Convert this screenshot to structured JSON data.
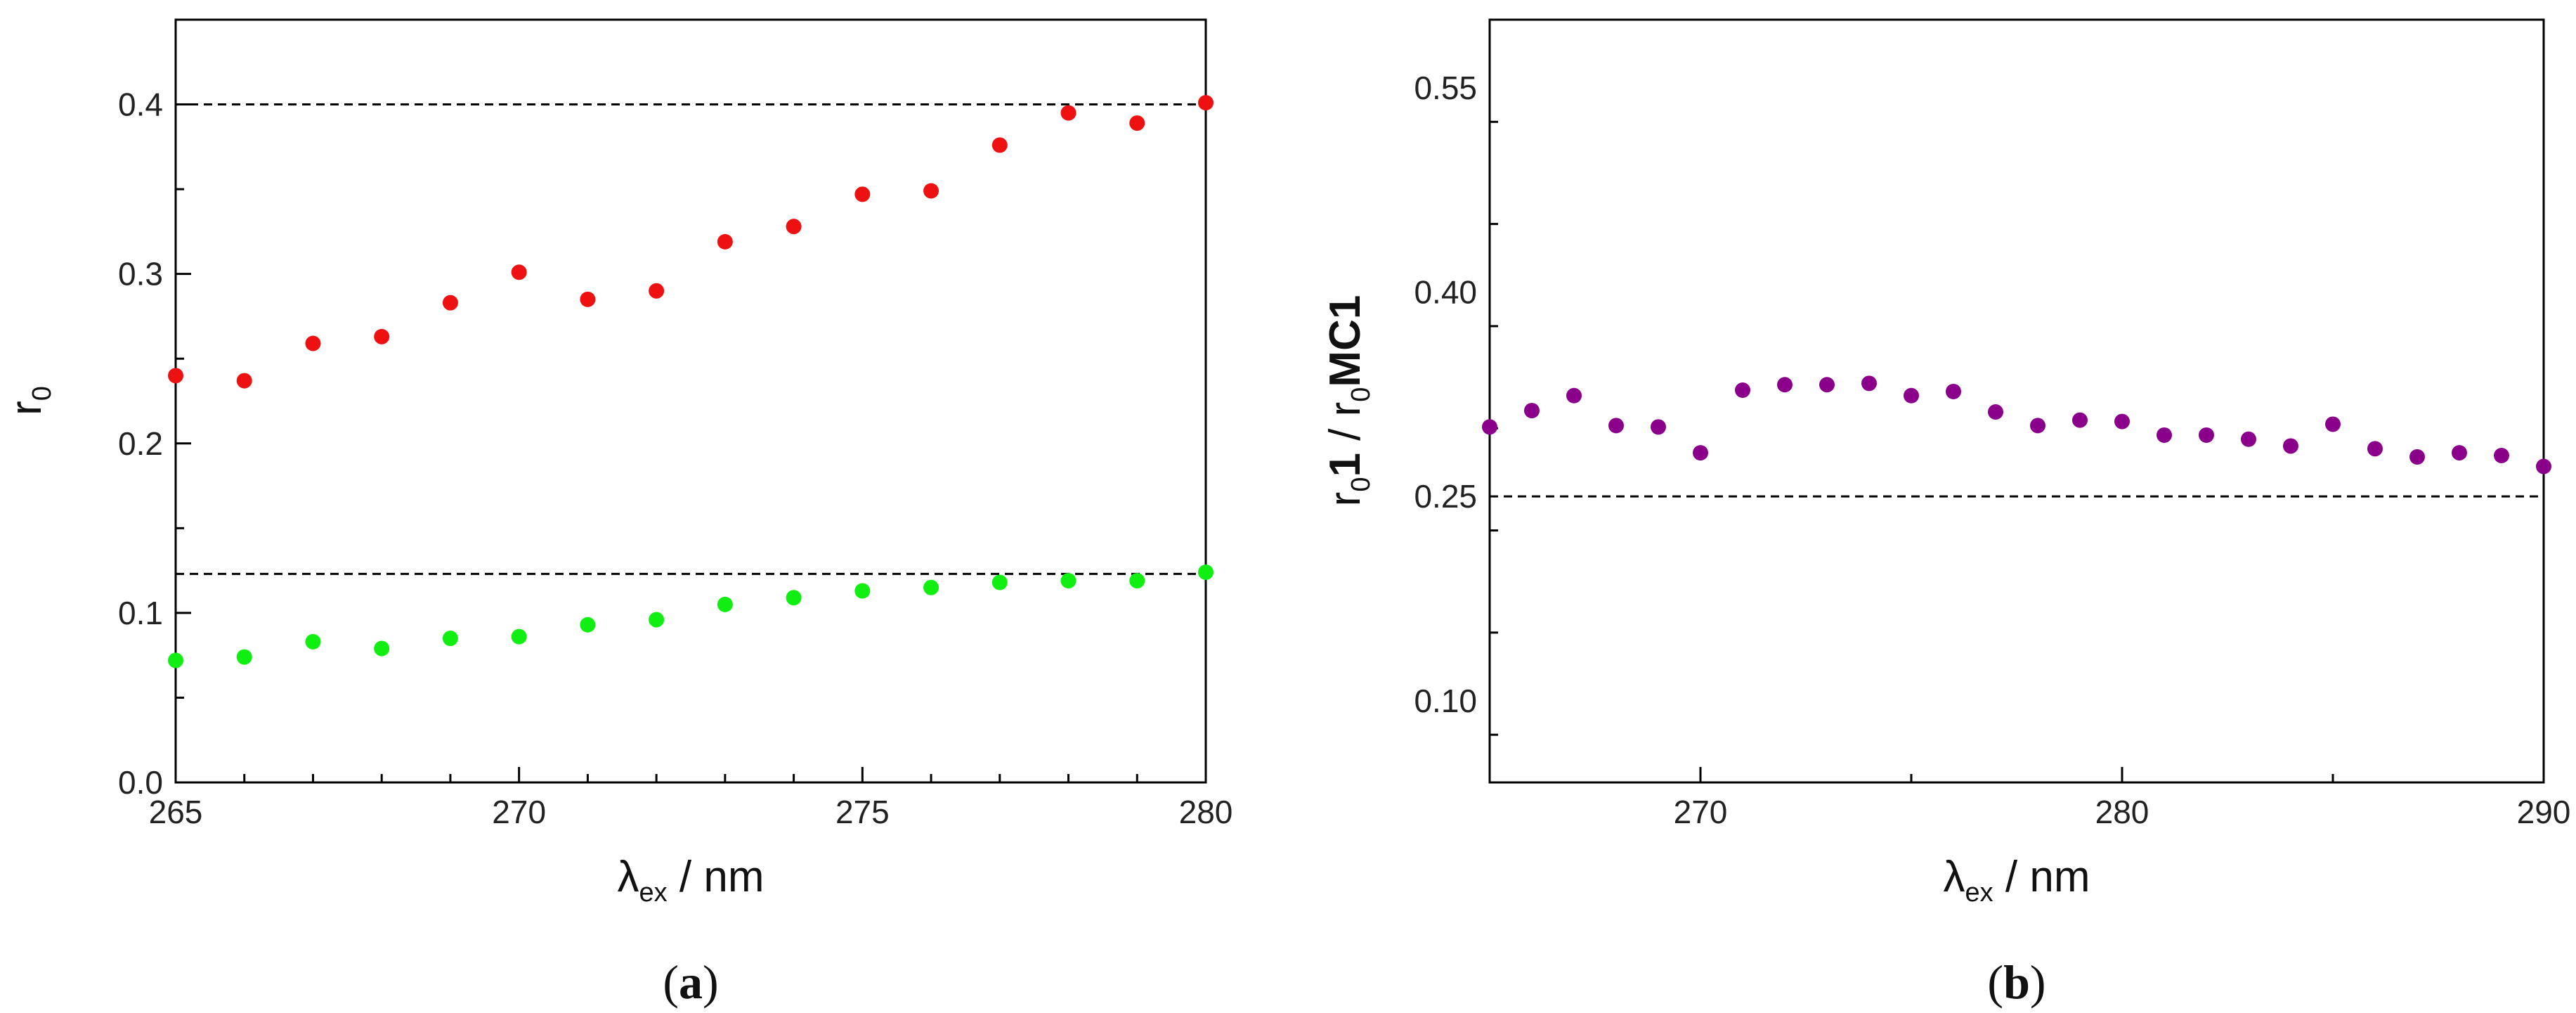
{
  "chart_data": [
    {
      "type": "scatter",
      "panel_label": {
        "open": "(",
        "letter": "a",
        "close": ")"
      },
      "xlabel": {
        "main": "λ",
        "sub": "ex",
        "rest": " / nm"
      },
      "ylabel": {
        "main": "r",
        "sub": "0"
      },
      "xlim": [
        265,
        280
      ],
      "ylim": [
        0.0,
        0.45
      ],
      "xticks": [
        265,
        270,
        275,
        280
      ],
      "xtick_labels": [
        "265",
        "270",
        "275",
        "280"
      ],
      "yticks": [
        0.0,
        0.1,
        0.2,
        0.3,
        0.4
      ],
      "ytick_labels": [
        "0.0",
        "0.1",
        "0.2",
        "0.3",
        "0.4"
      ],
      "reference_lines": [
        0.4,
        0.123
      ],
      "series": [
        {
          "name": "red",
          "color": "#ee1111",
          "x": [
            265,
            266,
            267,
            268,
            269,
            270,
            271,
            272,
            273,
            274,
            275,
            276,
            277,
            278,
            279,
            280
          ],
          "y": [
            0.24,
            0.237,
            0.259,
            0.263,
            0.283,
            0.301,
            0.285,
            0.29,
            0.319,
            0.328,
            0.347,
            0.349,
            0.376,
            0.395,
            0.389,
            0.401
          ]
        },
        {
          "name": "green",
          "color": "#11ee11",
          "x": [
            265,
            266,
            267,
            268,
            269,
            270,
            271,
            272,
            273,
            274,
            275,
            276,
            277,
            278,
            279,
            280
          ],
          "y": [
            0.072,
            0.074,
            0.083,
            0.079,
            0.085,
            0.086,
            0.093,
            0.096,
            0.105,
            0.109,
            0.113,
            0.115,
            0.118,
            0.119,
            0.119,
            0.124
          ]
        }
      ]
    },
    {
      "type": "scatter",
      "panel_label": {
        "open": "(",
        "letter": "b",
        "close": ")"
      },
      "xlabel": {
        "main": "λ",
        "sub": "ex",
        "rest": " / nm"
      },
      "ylabel": {
        "main": "r",
        "sub": "0",
        "bold1": "1",
        "mid": " / r",
        "sub2": "0",
        "bold2": "MC1"
      },
      "xlim": [
        265,
        290
      ],
      "ylim": [
        0.04,
        0.6
      ],
      "xticks": [
        270,
        280,
        290
      ],
      "xtick_labels": [
        "270",
        "280",
        "290"
      ],
      "yticks": [
        0.1,
        0.25,
        0.4,
        0.55
      ],
      "ytick_labels": [
        "0.10",
        "0.25",
        "0.40",
        "0.55"
      ],
      "reference_lines": [
        0.25
      ],
      "series": [
        {
          "name": "purple",
          "color": "#8b008b",
          "x": [
            265,
            266,
            267,
            268,
            269,
            270,
            271,
            272,
            273,
            274,
            275,
            276,
            277,
            278,
            279,
            280,
            281,
            282,
            283,
            284,
            285,
            286,
            287,
            288,
            289,
            290
          ],
          "y": [
            0.301,
            0.313,
            0.324,
            0.302,
            0.301,
            0.282,
            0.328,
            0.332,
            0.332,
            0.333,
            0.324,
            0.327,
            0.312,
            0.302,
            0.306,
            0.305,
            0.295,
            0.295,
            0.292,
            0.287,
            0.303,
            0.285,
            0.279,
            0.282,
            0.28,
            0.272
          ]
        }
      ]
    }
  ]
}
